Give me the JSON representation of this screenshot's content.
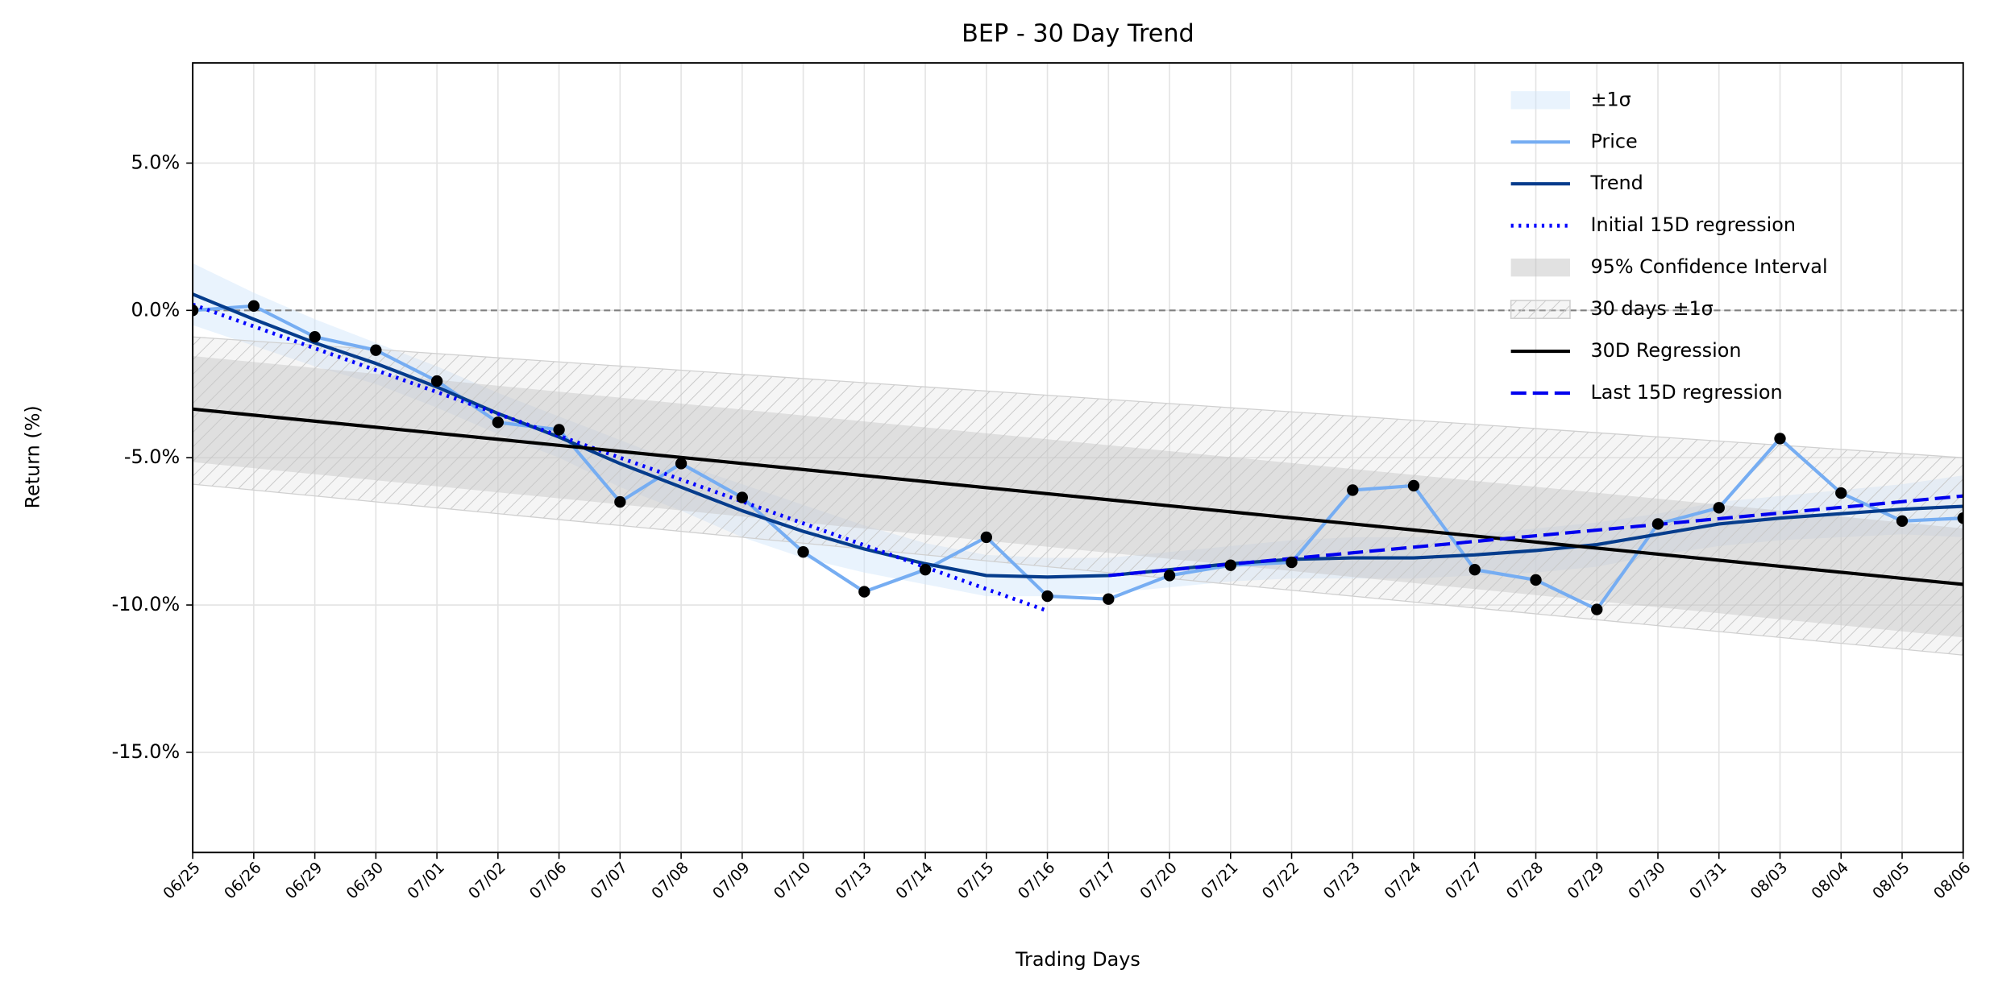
{
  "chart_data": {
    "type": "line",
    "title": "BEP - 30 Day Trend",
    "x_label": "Trading Days",
    "y_label": "Return (%)",
    "categories": [
      "06/25",
      "06/26",
      "06/29",
      "06/30",
      "07/01",
      "07/02",
      "07/06",
      "07/07",
      "07/08",
      "07/09",
      "07/10",
      "07/13",
      "07/14",
      "07/15",
      "07/16",
      "07/17",
      "07/20",
      "07/21",
      "07/22",
      "07/23",
      "07/24",
      "07/27",
      "07/28",
      "07/29",
      "07/30",
      "07/31",
      "08/03",
      "08/04",
      "08/05",
      "08/06"
    ],
    "ylim": [
      -18.4,
      8.4
    ],
    "yticks": [
      {
        "value": 5,
        "label": "5.0%"
      },
      {
        "value": 0,
        "label": "0.0%"
      },
      {
        "value": -5,
        "label": "-5.0%"
      },
      {
        "value": -10,
        "label": "-10.0%"
      },
      {
        "value": -15,
        "label": "-15.0%"
      }
    ],
    "grid": true,
    "reference_line": 0,
    "legend": "upper right",
    "series": [
      {
        "name": "±1σ",
        "kind": "band",
        "color": "#cfe5fb",
        "upper": [
          1.6,
          0.6,
          -0.3,
          -1.1,
          -1.9,
          -2.8,
          -3.6,
          -4.4,
          -5.2,
          -5.9,
          -6.6,
          -7.3,
          -7.9,
          -8.3,
          -8.4,
          -8.4,
          -8.2,
          -8.0,
          -7.8,
          -7.7,
          -7.7,
          -7.6,
          -7.4,
          -7.2,
          -6.9,
          -6.5,
          -6.3,
          -6.1,
          -5.9,
          -5.6
        ],
        "lower": [
          -0.5,
          -1.2,
          -1.9,
          -2.5,
          -3.3,
          -4.2,
          -5.0,
          -6.0,
          -6.8,
          -7.7,
          -8.4,
          -8.9,
          -9.3,
          -9.7,
          -9.7,
          -9.6,
          -9.4,
          -9.2,
          -9.1,
          -9.1,
          -9.1,
          -9.0,
          -8.9,
          -8.7,
          -8.3,
          -8.0,
          -7.8,
          -7.7,
          -7.6,
          -7.7
        ]
      },
      {
        "name": "Price",
        "kind": "line",
        "color": "#76adf2",
        "linestyle": "solid",
        "markers": true,
        "marker_color": "#000000",
        "values": [
          0.0,
          0.15,
          -0.9,
          -1.35,
          -2.4,
          -3.8,
          -4.05,
          -6.5,
          -5.2,
          -6.35,
          -8.2,
          -9.55,
          -8.8,
          -7.7,
          -9.7,
          -9.8,
          -9.0,
          -8.65,
          -8.55,
          -6.1,
          -5.95,
          -8.8,
          -9.15,
          -10.15,
          -7.25,
          -6.7,
          -4.35,
          -6.2,
          -7.15,
          -7.05
        ]
      },
      {
        "name": "Trend",
        "kind": "line",
        "color": "#053c8c",
        "linestyle": "solid",
        "values": [
          0.55,
          -0.3,
          -1.1,
          -1.8,
          -2.6,
          -3.5,
          -4.3,
          -5.2,
          -6.0,
          -6.8,
          -7.5,
          -8.1,
          -8.6,
          -9.0,
          -9.05,
          -9.0,
          -8.8,
          -8.6,
          -8.45,
          -8.4,
          -8.4,
          -8.3,
          -8.15,
          -7.95,
          -7.6,
          -7.25,
          -7.05,
          -6.9,
          -6.75,
          -6.65
        ]
      },
      {
        "name": "Initial 15D regression",
        "kind": "line",
        "color": "#0000ff",
        "linestyle": "dotted",
        "x": [
          "06/25",
          "07/16"
        ],
        "values": [
          0.2,
          -10.2
        ]
      },
      {
        "name": "95% Confidence Interval",
        "kind": "band",
        "color": "#bdbdbd",
        "x": [
          "06/25",
          "08/06"
        ],
        "upper": [
          -1.55,
          -7.4
        ],
        "lower": [
          -5.15,
          -11.1
        ]
      },
      {
        "name": "30 days ±1σ",
        "kind": "band",
        "color": "#d9d9d9",
        "hatch": true,
        "x": [
          "06/25",
          "08/06"
        ],
        "upper": [
          -0.9,
          -5.0
        ],
        "lower": [
          -5.9,
          -11.7
        ]
      },
      {
        "name": "30D Regression",
        "kind": "line",
        "color": "#000000",
        "linestyle": "solid",
        "x": [
          "06/25",
          "08/06"
        ],
        "values": [
          -3.35,
          -9.3
        ]
      },
      {
        "name": "Last 15D regression",
        "kind": "line",
        "color": "#0000ee",
        "linestyle": "dashed",
        "x": [
          "07/17",
          "08/06"
        ],
        "values": [
          -9.0,
          -6.3
        ]
      }
    ]
  }
}
